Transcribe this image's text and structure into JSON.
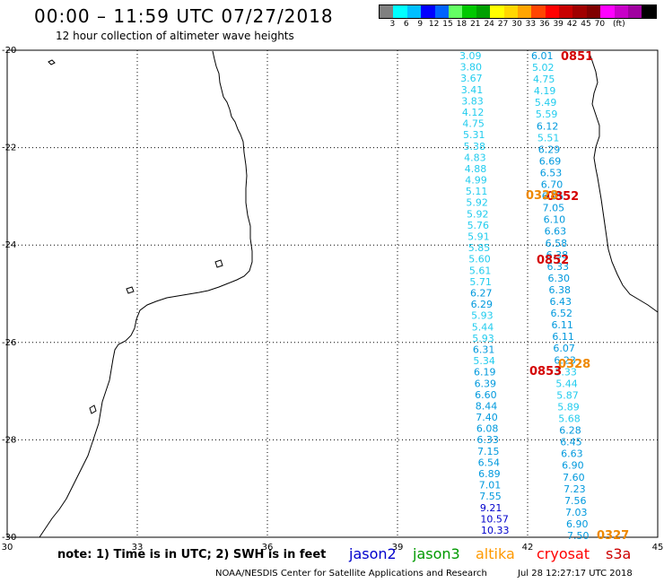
{
  "title": "00:00 – 11:59 UTC 07/27/2018",
  "subtitle": "12 hour collection of altimeter wave heights",
  "colorbar": {
    "colors": [
      "#808080",
      "#00ffff",
      "#00bfff",
      "#0000ff",
      "#0064ff",
      "#64ff64",
      "#00c800",
      "#00a000",
      "#ffff00",
      "#ffd700",
      "#ffa500",
      "#ff4500",
      "#ff0000",
      "#c80000",
      "#a00000",
      "#800000",
      "#ff00ff",
      "#c800c8",
      "#a000a0",
      "#000000"
    ],
    "labels": [
      "3",
      "6",
      "9",
      "12",
      "15",
      "18",
      "21",
      "24",
      "27",
      "30",
      "33",
      "36",
      "39",
      "42",
      "45",
      "70",
      "(ft)"
    ]
  },
  "axes": {
    "x_ticks": [
      "30",
      "33",
      "36",
      "39",
      "42",
      "45"
    ],
    "y_ticks": [
      "-20",
      "-22",
      "-24",
      "-26",
      "-28",
      "-30"
    ]
  },
  "tracks": {
    "left_values": [
      "3.09",
      "3.80",
      "3.67",
      "3.41",
      "3.83",
      "4.12",
      "4.75",
      "5.31",
      "5.38",
      "4.83",
      "4.88",
      "4.99",
      "5.11",
      "5.92",
      "5.92",
      "5.76",
      "5.91",
      "5.85",
      "5.60",
      "5.61",
      "5.71",
      "6.27",
      "6.29",
      "5.93",
      "5.44",
      "5.93",
      "6.31",
      "5.34",
      "6.19",
      "6.39",
      "6.60",
      "8.44",
      "7.40",
      "6.08",
      "6.33",
      "7.15",
      "6.54",
      "6.89",
      "7.01",
      "7.55",
      "9.21",
      "10.57",
      "10.33"
    ],
    "right_values": [
      "6.01",
      "5.02",
      "4.75",
      "4.19",
      "5.49",
      "5.59",
      "6.12",
      "5.51",
      "6.29",
      "6.69",
      "6.53",
      "6.70",
      "6.95",
      "7.05",
      "6.10",
      "6.63",
      "6.58",
      "6.38",
      "6.33",
      "6.30",
      "6.38",
      "6.43",
      "6.52",
      "6.11",
      "6.11",
      "6.07",
      "6.23",
      "5.33",
      "5.44",
      "5.87",
      "5.89",
      "5.68",
      "6.28",
      "6.45",
      "6.63",
      "6.90",
      "7.60",
      "7.23",
      "7.56",
      "7.03",
      "6.90",
      "7.50"
    ]
  },
  "pass_times": [
    {
      "label": "0851",
      "color": "#d40000"
    },
    {
      "label": "0852",
      "color": "#d40000"
    },
    {
      "label": "0852",
      "color": "#d40000"
    },
    {
      "label": "0853",
      "color": "#d40000"
    },
    {
      "label": "0328",
      "color": "#ee8800"
    },
    {
      "label": "0328",
      "color": "#ee8800"
    },
    {
      "label": "0327",
      "color": "#ee8800"
    }
  ],
  "note": "note:  1) Time is in UTC;  2) SWH is in feet",
  "legend": [
    {
      "label": "jason2",
      "color": "#0000cc"
    },
    {
      "label": "jason3",
      "color": "#009900"
    },
    {
      "label": "altika",
      "color": "#ff9900"
    },
    {
      "label": "cryosat",
      "color": "#ff0000"
    },
    {
      "label": "s3a",
      "color": "#cc0000"
    }
  ],
  "credit": "NOAA/NESDIS Center for Satellite Applications and Research",
  "timestamp": "Jul 28 12:27:17 UTC 2018"
}
